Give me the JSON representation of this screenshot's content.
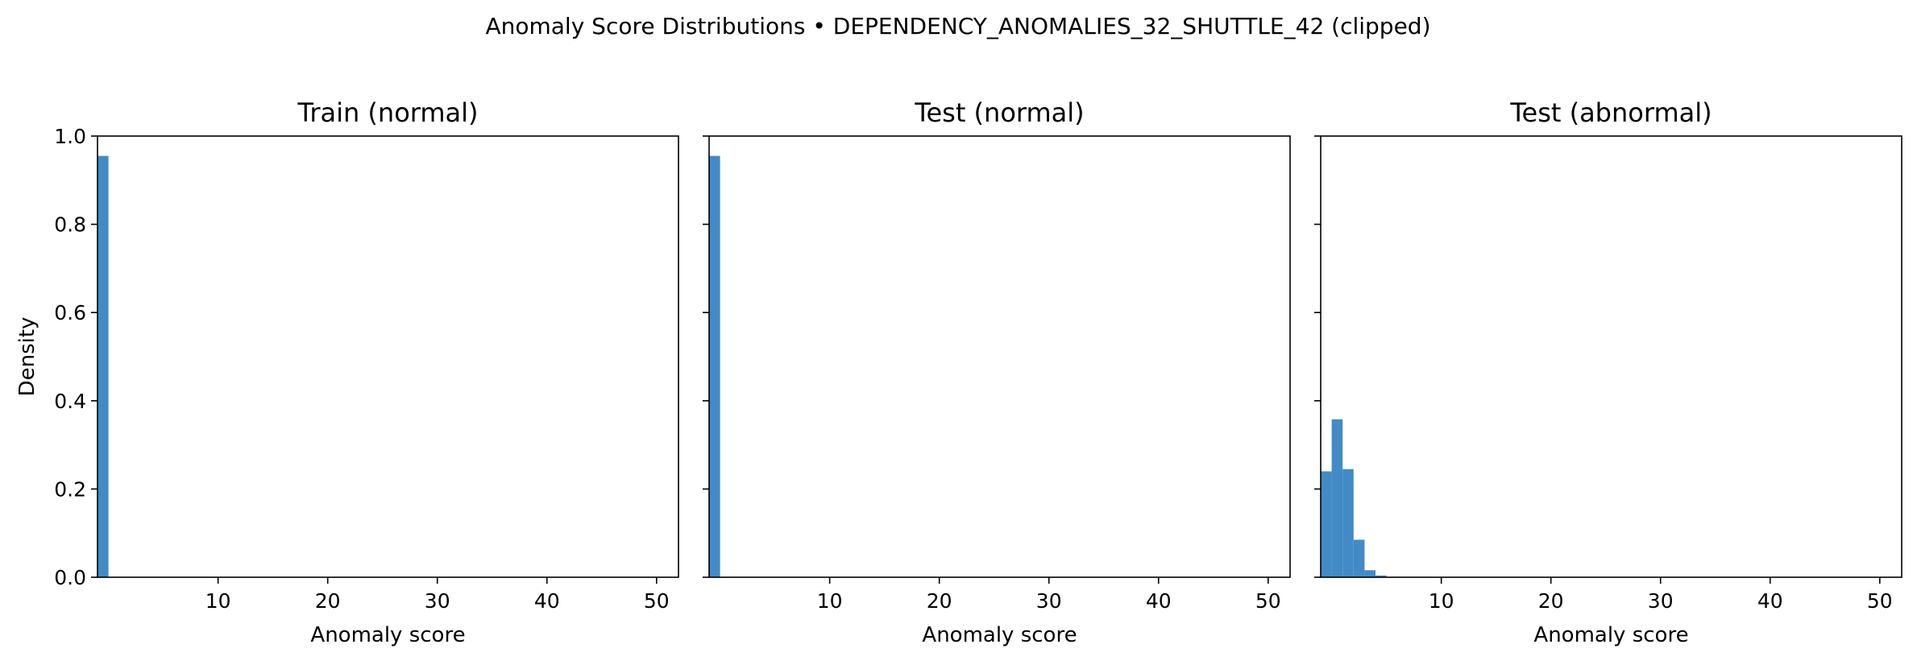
{
  "figure": {
    "suptitle": "Anomaly Score Distributions • DEPENDENCY_ANOMALIES_32_SHUTTLE_42 (clipped)"
  },
  "colors": {
    "bar": "#428bc6",
    "axis": "#000000",
    "background": "#ffffff"
  },
  "chart_data": [
    {
      "type": "bar",
      "title": "Train (normal)",
      "xlabel": "Anomaly score",
      "ylabel": "Density",
      "xlim": [
        -1.0,
        52.0
      ],
      "ylim": [
        0,
        1.0
      ],
      "xticks": [
        10,
        20,
        30,
        40,
        50
      ],
      "yticks": [
        0.0,
        0.2,
        0.4,
        0.6,
        0.8,
        1.0
      ],
      "grid": false,
      "bin_width": 1.0,
      "bins": [
        {
          "x0": -1.0,
          "x1": 0.0,
          "density": 0.955
        }
      ]
    },
    {
      "type": "bar",
      "title": "Test (normal)",
      "xlabel": "Anomaly score",
      "ylabel": "",
      "xlim": [
        -1.0,
        52.0
      ],
      "ylim": [
        0,
        1.0
      ],
      "xticks": [
        10,
        20,
        30,
        40,
        50
      ],
      "yticks": [
        0.0,
        0.2,
        0.4,
        0.6,
        0.8,
        1.0
      ],
      "grid": false,
      "bin_width": 1.0,
      "bins": [
        {
          "x0": -1.0,
          "x1": 0.0,
          "density": 0.955
        }
      ]
    },
    {
      "type": "bar",
      "title": "Test (abnormal)",
      "xlabel": "Anomaly score",
      "ylabel": "",
      "xlim": [
        -1.0,
        52.0
      ],
      "ylim": [
        0,
        1.0
      ],
      "xticks": [
        10,
        20,
        30,
        40,
        50
      ],
      "yticks": [
        0.0,
        0.2,
        0.4,
        0.6,
        0.8,
        1.0
      ],
      "grid": false,
      "bin_width": 1.0,
      "bins": [
        {
          "x0": -1.0,
          "x1": 0.0,
          "density": 0.24
        },
        {
          "x0": 0.0,
          "x1": 1.0,
          "density": 0.358
        },
        {
          "x0": 1.0,
          "x1": 2.0,
          "density": 0.245
        },
        {
          "x0": 2.0,
          "x1": 3.0,
          "density": 0.085
        },
        {
          "x0": 3.0,
          "x1": 4.0,
          "density": 0.016
        },
        {
          "x0": 4.0,
          "x1": 5.0,
          "density": 0.004
        },
        {
          "x0": 5.0,
          "x1": 6.0,
          "density": 0.001
        }
      ]
    }
  ]
}
